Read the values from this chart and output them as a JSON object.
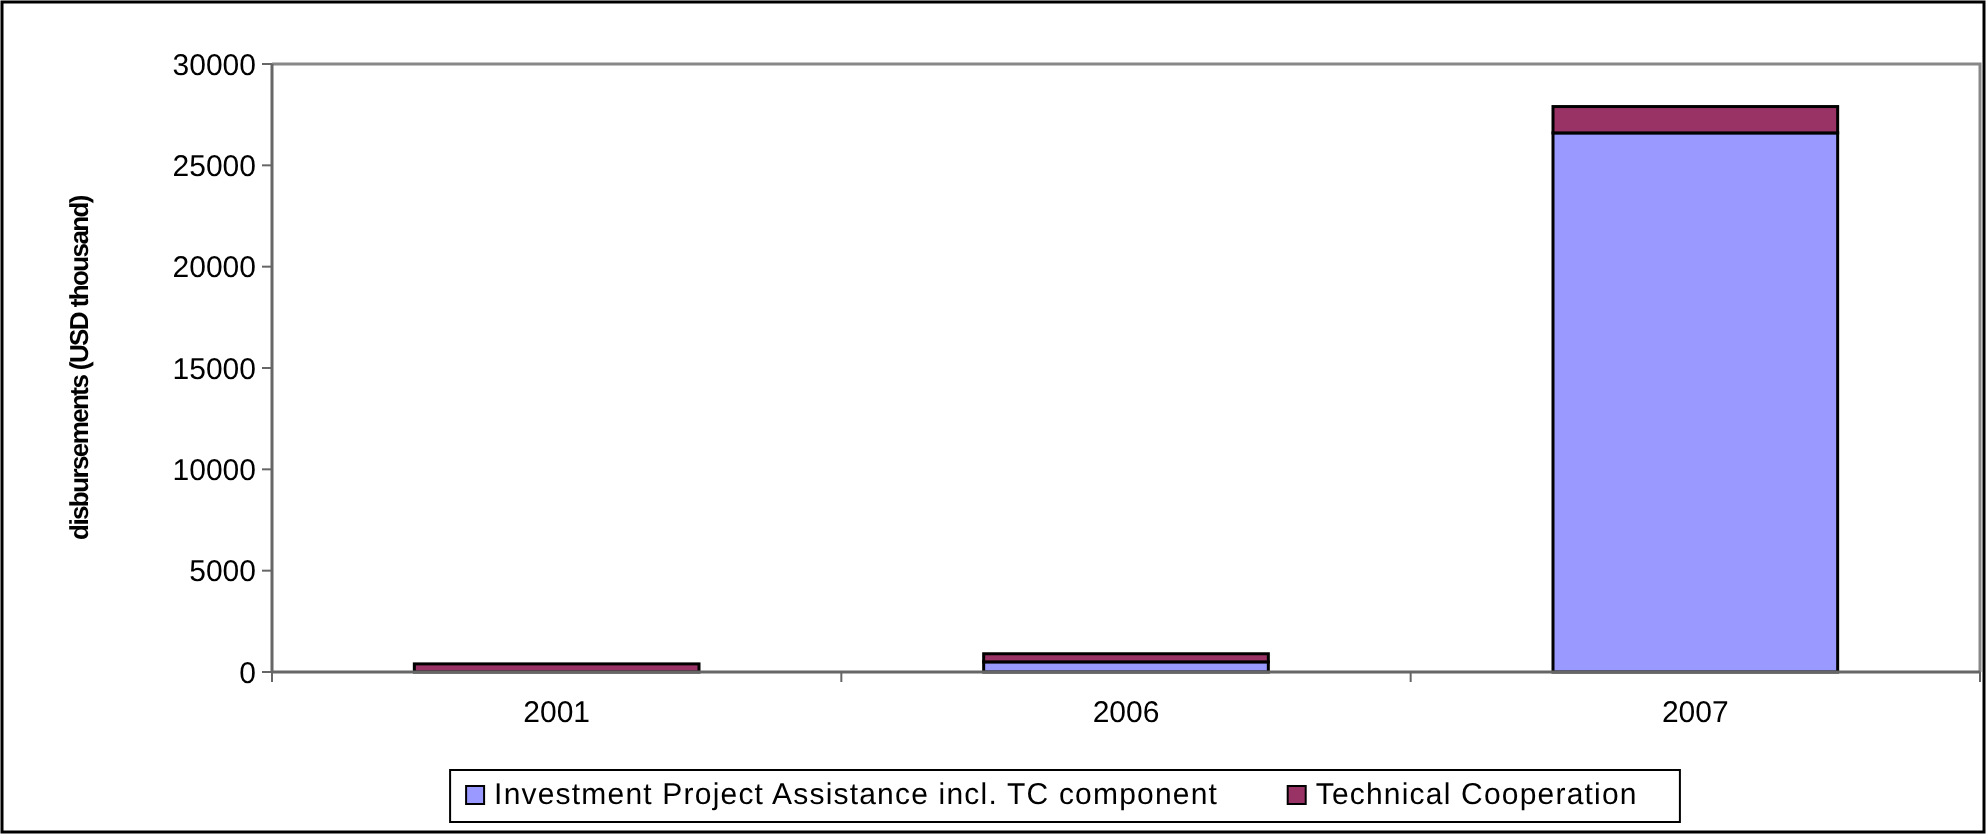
{
  "chart_data": {
    "type": "bar",
    "stacked": true,
    "ylabel": "disbursements (USD thousand)",
    "categories": [
      "2001",
      "2006",
      "2007"
    ],
    "series": [
      {
        "name": "Investment Project Assistance incl. TC component",
        "color": "#9999ff",
        "values": [
          0,
          500,
          26600
        ]
      },
      {
        "name": "Technical Cooperation",
        "color": "#993366",
        "values": [
          400,
          400,
          1300
        ]
      }
    ],
    "ylim": [
      0,
      30000
    ],
    "yticks": [
      0,
      5000,
      10000,
      15000,
      20000,
      25000,
      30000
    ],
    "grid": false,
    "legend": "bottom"
  }
}
